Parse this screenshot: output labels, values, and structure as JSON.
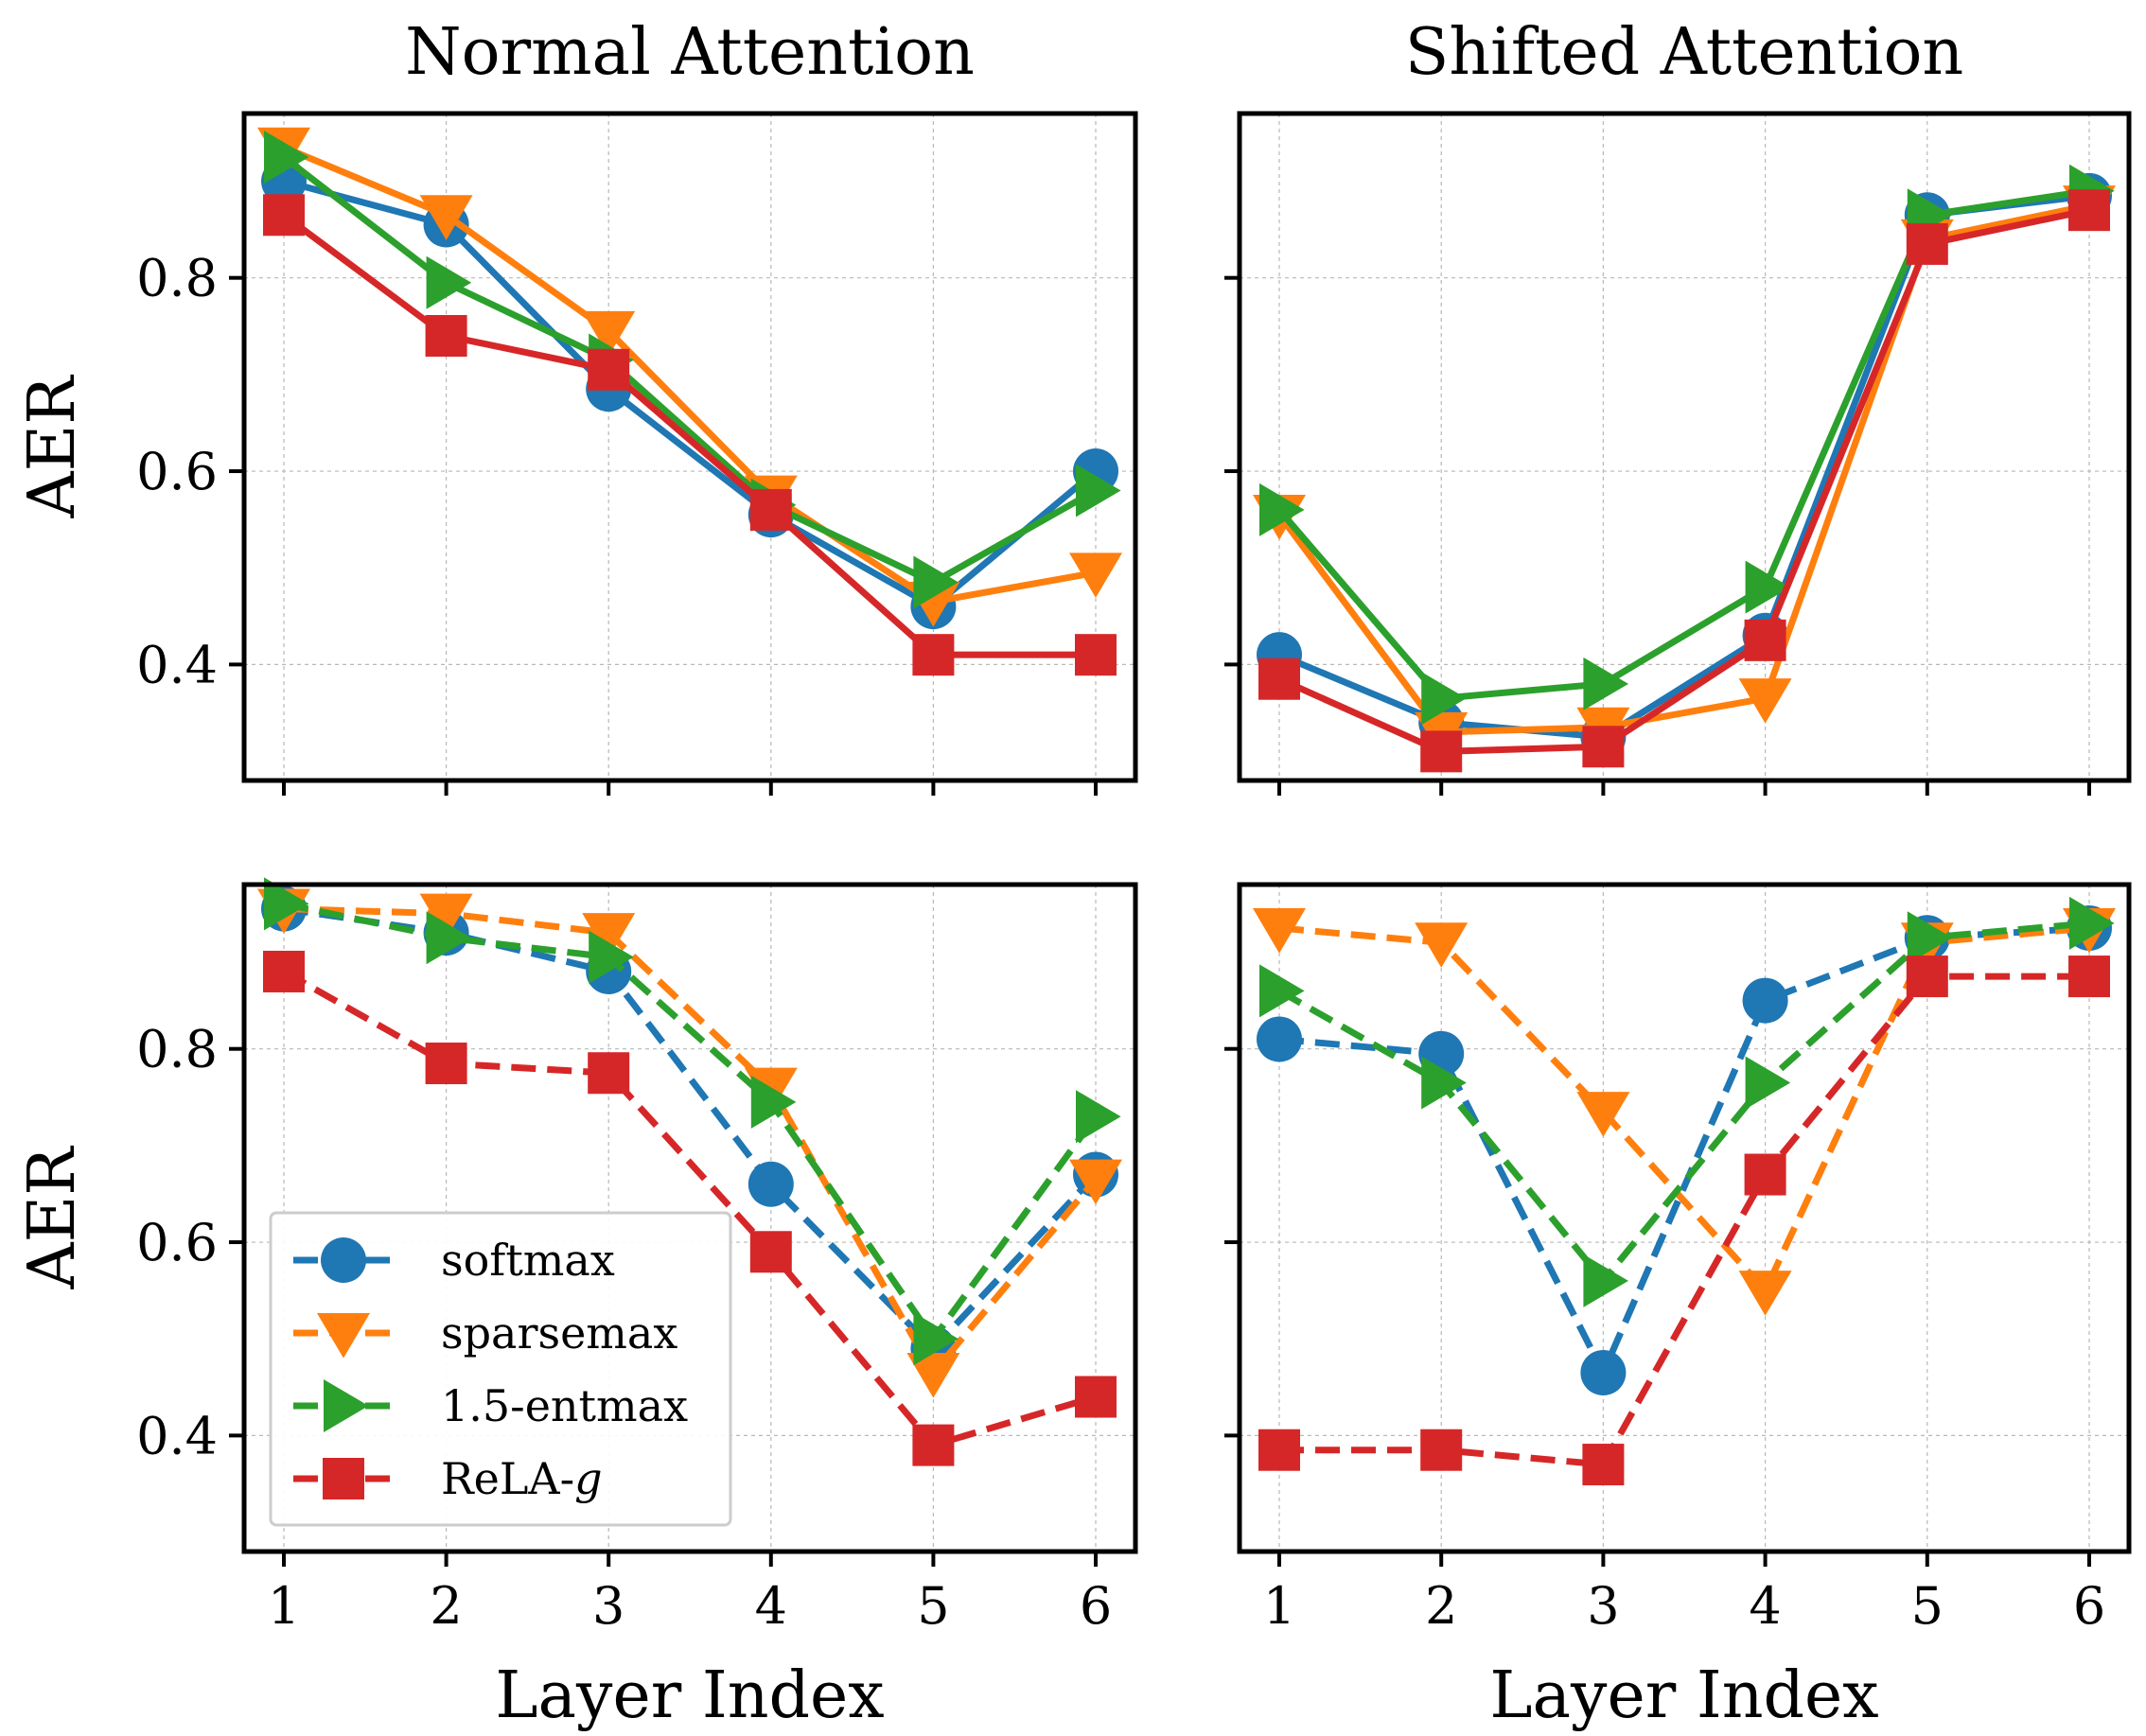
{
  "chart_data": [
    {
      "type": "line",
      "position": "top-left",
      "title": "Normal Attention",
      "xlabel": "",
      "ylabel": "AER",
      "x": [
        1,
        2,
        3,
        4,
        5,
        6
      ],
      "ylim": [
        0.28,
        0.97
      ],
      "yticks": [
        "0.4",
        "0.6",
        "0.8"
      ],
      "xticks": [],
      "linestyle": "solid",
      "series": [
        {
          "name": "softmax",
          "values": [
            0.9,
            0.855,
            0.685,
            0.555,
            0.46,
            0.6
          ]
        },
        {
          "name": "sparsemax",
          "values": [
            0.935,
            0.865,
            0.745,
            0.575,
            0.465,
            0.495
          ]
        },
        {
          "name": "1.5-entmax",
          "values": [
            0.925,
            0.795,
            0.715,
            0.565,
            0.485,
            0.58
          ]
        },
        {
          "name": "ReLA-g",
          "values": [
            0.865,
            0.74,
            0.705,
            0.56,
            0.41,
            0.41
          ]
        }
      ]
    },
    {
      "type": "line",
      "position": "top-right",
      "title": "Shifted Attention",
      "xlabel": "",
      "ylabel": "",
      "x": [
        1,
        2,
        3,
        4,
        5,
        6
      ],
      "ylim": [
        0.28,
        0.97
      ],
      "yticks": [],
      "xticks": [],
      "linestyle": "solid",
      "series": [
        {
          "name": "softmax",
          "values": [
            0.41,
            0.34,
            0.325,
            0.43,
            0.865,
            0.885
          ]
        },
        {
          "name": "sparsemax",
          "values": [
            0.555,
            0.33,
            0.335,
            0.365,
            0.84,
            0.875
          ]
        },
        {
          "name": "1.5-entmax",
          "values": [
            0.56,
            0.365,
            0.38,
            0.48,
            0.865,
            0.89
          ]
        },
        {
          "name": "ReLA-g",
          "values": [
            0.385,
            0.31,
            0.315,
            0.425,
            0.835,
            0.87
          ]
        }
      ]
    },
    {
      "type": "line",
      "position": "bottom-left",
      "title": "",
      "xlabel": "Layer Index",
      "ylabel": "AER",
      "x": [
        1,
        2,
        3,
        4,
        5,
        6
      ],
      "ylim": [
        0.28,
        0.97
      ],
      "yticks": [
        "0.4",
        "0.6",
        "0.8"
      ],
      "xticks": [
        "1",
        "2",
        "3",
        "4",
        "5",
        "6"
      ],
      "linestyle": "dashed",
      "legend": "lower-left",
      "series": [
        {
          "name": "softmax",
          "values": [
            0.945,
            0.92,
            0.88,
            0.66,
            0.49,
            0.67
          ]
        },
        {
          "name": "sparsemax",
          "values": [
            0.945,
            0.94,
            0.92,
            0.76,
            0.465,
            0.665
          ]
        },
        {
          "name": "1.5-entmax",
          "values": [
            0.95,
            0.915,
            0.895,
            0.745,
            0.5,
            0.73
          ]
        },
        {
          "name": "ReLA-g",
          "values": [
            0.88,
            0.785,
            0.775,
            0.59,
            0.39,
            0.44
          ]
        }
      ]
    },
    {
      "type": "line",
      "position": "bottom-right",
      "title": "",
      "xlabel": "Layer Index",
      "ylabel": "",
      "x": [
        1,
        2,
        3,
        4,
        5,
        6
      ],
      "ylim": [
        0.28,
        0.97
      ],
      "yticks": [],
      "xticks": [
        "1",
        "2",
        "3",
        "4",
        "5",
        "6"
      ],
      "linestyle": "dashed",
      "series": [
        {
          "name": "softmax",
          "values": [
            0.81,
            0.795,
            0.465,
            0.85,
            0.915,
            0.925
          ]
        },
        {
          "name": "sparsemax",
          "values": [
            0.925,
            0.91,
            0.735,
            0.55,
            0.91,
            0.925
          ]
        },
        {
          "name": "1.5-entmax",
          "values": [
            0.86,
            0.765,
            0.56,
            0.765,
            0.915,
            0.93
          ]
        },
        {
          "name": "ReLA-g",
          "values": [
            0.385,
            0.385,
            0.37,
            0.67,
            0.875,
            0.875
          ]
        }
      ]
    }
  ],
  "series_styles": [
    {
      "name": "softmax",
      "color": "#1f77b4",
      "marker": "circle"
    },
    {
      "name": "sparsemax",
      "color": "#ff7f0e",
      "marker": "triangle-down"
    },
    {
      "name": "1.5-entmax",
      "color": "#2ca02c",
      "marker": "triangle-right"
    },
    {
      "name": "ReLA-g",
      "color": "#d62728",
      "marker": "square"
    }
  ],
  "legend": {
    "entries": [
      {
        "prefix": "softmax",
        "italic": ""
      },
      {
        "prefix": "sparsemax",
        "italic": ""
      },
      {
        "prefix": "1.5-entmax",
        "italic": ""
      },
      {
        "prefix": "ReLA-",
        "italic": "g"
      }
    ]
  }
}
